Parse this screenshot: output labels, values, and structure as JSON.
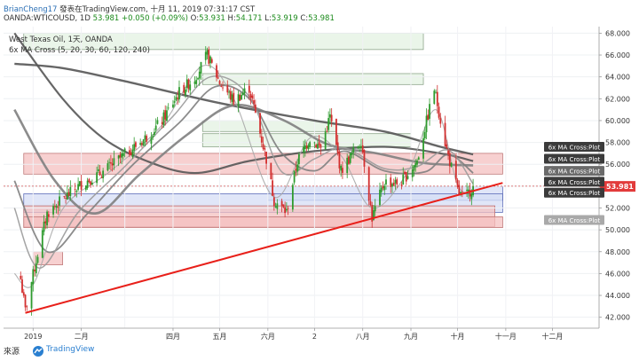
{
  "header": {
    "author": "BrianCheng17",
    "publish_prefix": "發表在TradingView.com, ",
    "publish_date": "十月 11, 2019 07:31:17 CST",
    "symbol_line": "OANDA:WTICOUSD, 1D ",
    "price": "53.981",
    "change": "+0.050 (+0.09%)",
    "ohlc": [
      {
        "label": "O:",
        "value": "53.931"
      },
      {
        "label": "H:",
        "value": "54.171"
      },
      {
        "label": "L:",
        "value": "53.919"
      },
      {
        "label": "C:",
        "value": "53.981"
      }
    ]
  },
  "footer": {
    "source_label": "來源",
    "tradingview": "TradingView"
  },
  "colors": {
    "up": "#2e9b2e",
    "down": "#d32f2f",
    "trendline": "#e8201a",
    "ma_gray": "#808080",
    "ma_dark": "#555555",
    "red_zone": "#f4c0c0",
    "green_zone": "#e3f1e1",
    "blue_zone": "#d6ddf6"
  },
  "chart_data": {
    "type": "candlestick",
    "legend": {
      "title": "West Texas Oil, 1天, OANDA",
      "indicator": "6x MA Cross (5, 20, 30, 60, 120, 240)"
    },
    "x_tick_labels": [
      "2019",
      "二月",
      "四月",
      "五月",
      "六月",
      "2",
      "八月",
      "九月",
      "十月",
      "十一月",
      "十二月"
    ],
    "y_ticks": [
      42,
      44,
      46,
      48,
      50,
      52,
      54,
      56,
      58,
      60,
      62,
      64,
      66,
      68
    ],
    "ylim": [
      41,
      68.6
    ],
    "last_price": "53.981",
    "dashed_price_level": 54.0,
    "ma_labels": [
      {
        "text": "6x MA Cross:Plot",
        "price": 57.6,
        "style": "dark"
      },
      {
        "text": "6x MA Cross:Plot",
        "price": 56.5,
        "style": "dark"
      },
      {
        "text": "6x MA Cross:Plot",
        "price": 55.4,
        "style": "gray"
      },
      {
        "text": "6x MA Cross:Plot",
        "price": 54.4,
        "style": "dark"
      },
      {
        "text": "6x MA Cross:Plot",
        "price": 53.4,
        "style": "dark"
      },
      {
        "text": "6x MA Cross:Plot",
        "price": 50.9,
        "style": "light"
      }
    ],
    "zones": [
      {
        "type": "green",
        "x0": "2018-12-26",
        "x1": "2019-09-09",
        "y0": 66.5,
        "y1": 68.0
      },
      {
        "type": "green",
        "x0": "2019-04-20",
        "x1": "2019-09-09",
        "y0": 63.3,
        "y1": 64.3
      },
      {
        "type": "green",
        "x0": "2019-04-20",
        "x1": "2019-09-01",
        "y0": 57.6,
        "y1": 58.8
      },
      {
        "type": "green",
        "x0": "2019-04-20",
        "x1": "2019-07-15",
        "y0": 59.0,
        "y1": 60.0
      },
      {
        "type": "red",
        "x0": "2018-12-26",
        "x1": "2019-10-30",
        "y0": 55.1,
        "y1": 57.0
      },
      {
        "type": "blue",
        "x0": "2019-06-01",
        "x1": "2019-10-30",
        "y0": 52.7,
        "y1": 54.0
      },
      {
        "type": "blue",
        "x0": "2018-12-26",
        "x1": "2019-10-30",
        "y0": 51.6,
        "y1": 53.3
      },
      {
        "type": "red",
        "x0": "2018-12-26",
        "x1": "2019-10-25",
        "y0": 50.3,
        "y1": 52.2
      },
      {
        "type": "red",
        "x0": "2018-12-26",
        "x1": "2019-10-30",
        "y0": 50.2,
        "y1": 51.2
      },
      {
        "type": "red",
        "x0": "2019-01-01",
        "x1": "2019-01-20",
        "y0": 46.8,
        "y1": 48.0
      }
    ],
    "trendline": {
      "start": {
        "date": "2018-12-27",
        "price": 42.4
      },
      "end": {
        "date": "2019-10-30",
        "price": 54.3
      }
    },
    "price_path": [
      [
        "2018-12-24",
        45.5
      ],
      [
        "2018-12-27",
        42.6
      ],
      [
        "2019-01-03",
        47.2
      ],
      [
        "2019-01-10",
        51.5
      ],
      [
        "2019-01-20",
        52.8
      ],
      [
        "2019-02-01",
        54.2
      ],
      [
        "2019-02-15",
        55.3
      ],
      [
        "2019-03-01",
        56.9
      ],
      [
        "2019-03-15",
        58.5
      ],
      [
        "2019-03-25",
        60.0
      ],
      [
        "2019-04-05",
        62.6
      ],
      [
        "2019-04-15",
        63.9
      ],
      [
        "2019-04-23",
        66.0
      ],
      [
        "2019-05-01",
        63.5
      ],
      [
        "2019-05-10",
        61.8
      ],
      [
        "2019-05-20",
        63.0
      ],
      [
        "2019-05-31",
        56.5
      ],
      [
        "2019-06-05",
        52.7
      ],
      [
        "2019-06-13",
        51.6
      ],
      [
        "2019-06-20",
        56.3
      ],
      [
        "2019-06-28",
        58.4
      ],
      [
        "2019-07-05",
        57.5
      ],
      [
        "2019-07-11",
        60.4
      ],
      [
        "2019-07-18",
        55.4
      ],
      [
        "2019-07-31",
        58.2
      ],
      [
        "2019-08-07",
        51.1
      ],
      [
        "2019-08-15",
        54.4
      ],
      [
        "2019-08-25",
        54.2
      ],
      [
        "2019-09-05",
        56.3
      ],
      [
        "2019-09-16",
        62.9
      ],
      [
        "2019-09-24",
        57.3
      ],
      [
        "2019-10-01",
        53.6
      ],
      [
        "2019-10-05",
        52.8
      ],
      [
        "2019-10-11",
        53.98
      ]
    ],
    "moving_averages": [
      {
        "name": "MA240",
        "points": [
          [
            "2018-12-20",
            65.2
          ],
          [
            "2019-01-20",
            64.8
          ],
          [
            "2019-03-01",
            63.6
          ],
          [
            "2019-05-01",
            61.6
          ],
          [
            "2019-07-01",
            60.0
          ],
          [
            "2019-08-15",
            59.0
          ],
          [
            "2019-09-20",
            57.6
          ],
          [
            "2019-10-11",
            56.9
          ]
        ]
      },
      {
        "name": "MA120",
        "points": [
          [
            "2018-12-20",
            68.0
          ],
          [
            "2019-01-20",
            62.0
          ],
          [
            "2019-02-15",
            58.4
          ],
          [
            "2019-03-15",
            56.3
          ],
          [
            "2019-04-15",
            55.2
          ],
          [
            "2019-05-20",
            56.3
          ],
          [
            "2019-07-01",
            57.2
          ],
          [
            "2019-08-15",
            57.6
          ],
          [
            "2019-09-20",
            57.0
          ],
          [
            "2019-10-11",
            56.3
          ]
        ]
      },
      {
        "name": "MA60",
        "points": [
          [
            "2018-12-20",
            61.0
          ],
          [
            "2019-01-15",
            54.5
          ],
          [
            "2019-02-10",
            51.5
          ],
          [
            "2019-03-10",
            55.0
          ],
          [
            "2019-04-10",
            58.7
          ],
          [
            "2019-05-10",
            61.4
          ],
          [
            "2019-06-10",
            60.1
          ],
          [
            "2019-07-10",
            57.8
          ],
          [
            "2019-08-10",
            57.0
          ],
          [
            "2019-09-10",
            56.1
          ],
          [
            "2019-10-11",
            55.9
          ]
        ]
      },
      {
        "name": "MA30",
        "points": [
          [
            "2018-12-20",
            54.5
          ],
          [
            "2019-01-10",
            48.0
          ],
          [
            "2019-02-05",
            51.5
          ],
          [
            "2019-03-05",
            55.8
          ],
          [
            "2019-04-05",
            59.8
          ],
          [
            "2019-04-28",
            63.1
          ],
          [
            "2019-05-20",
            62.0
          ],
          [
            "2019-06-10",
            57.0
          ],
          [
            "2019-07-01",
            55.4
          ],
          [
            "2019-07-20",
            57.2
          ],
          [
            "2019-08-15",
            55.4
          ],
          [
            "2019-09-10",
            55.3
          ],
          [
            "2019-09-25",
            56.9
          ],
          [
            "2019-10-11",
            55.2
          ]
        ]
      },
      {
        "name": "MA20",
        "points": [
          [
            "2018-12-20",
            52.0
          ],
          [
            "2019-01-05",
            46.5
          ],
          [
            "2019-01-30",
            51.6
          ],
          [
            "2019-03-01",
            55.8
          ],
          [
            "2019-04-01",
            60.4
          ],
          [
            "2019-04-25",
            64.0
          ],
          [
            "2019-05-20",
            62.2
          ],
          [
            "2019-06-10",
            55.3
          ],
          [
            "2019-07-01",
            56.5
          ],
          [
            "2019-07-20",
            57.5
          ],
          [
            "2019-08-15",
            55.6
          ],
          [
            "2019-09-05",
            55.8
          ],
          [
            "2019-09-25",
            57.3
          ],
          [
            "2019-10-11",
            54.2
          ]
        ]
      },
      {
        "name": "MA5",
        "points": [
          [
            "2018-12-20",
            46.0
          ],
          [
            "2019-01-01",
            45.0
          ],
          [
            "2019-01-20",
            51.9
          ],
          [
            "2019-02-20",
            55.4
          ],
          [
            "2019-03-25",
            59.6
          ],
          [
            "2019-04-20",
            65.0
          ],
          [
            "2019-05-10",
            62.0
          ],
          [
            "2019-06-05",
            53.0
          ],
          [
            "2019-06-28",
            58.4
          ],
          [
            "2019-07-18",
            56.8
          ],
          [
            "2019-08-07",
            52.0
          ],
          [
            "2019-08-30",
            55.3
          ],
          [
            "2019-09-17",
            61.0
          ],
          [
            "2019-10-01",
            54.1
          ],
          [
            "2019-10-11",
            53.6
          ]
        ]
      }
    ]
  }
}
